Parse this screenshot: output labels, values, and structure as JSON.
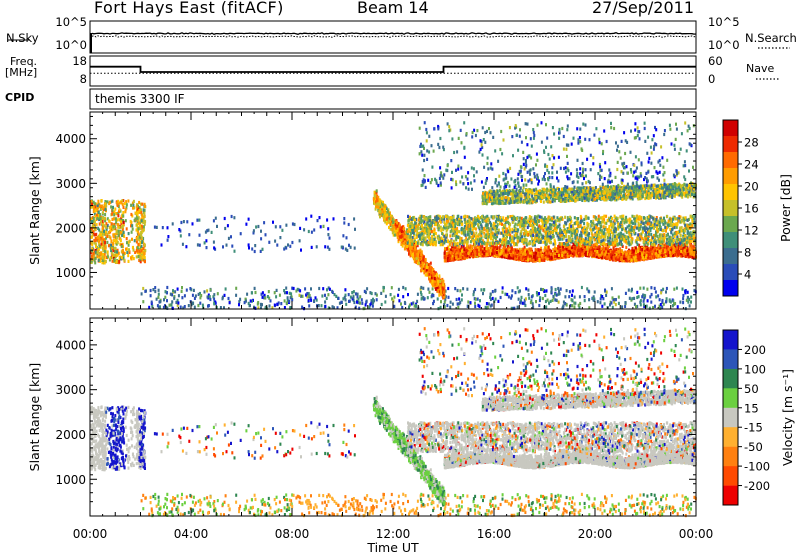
{
  "header": {
    "station": "Fort Hays East (fitACF)",
    "beam": "Beam 14",
    "date": "27/Sep/2011"
  },
  "side_labels": {
    "nsky": "N.Sky",
    "nsearch": "N.Search",
    "freq": "Freq.",
    "freq_unit": "[MHz]",
    "nave": "Nave",
    "cpid": "CPID"
  },
  "cpid_text": "themis 3300 IF",
  "chart_data": [
    {
      "type": "line",
      "panel": "noise",
      "left_ticks": [
        "10^5",
        "10^0"
      ],
      "right_ticks": [
        "10^5",
        "10^0"
      ],
      "series": [
        {
          "name": "N.Sky",
          "style": "solid"
        },
        {
          "name": "N.Search",
          "style": "dotted"
        }
      ]
    },
    {
      "type": "line",
      "panel": "frequency",
      "left_ticks": [
        "18",
        "8"
      ],
      "right_ticks": [
        "60",
        "0"
      ],
      "freq_ylim": [
        8,
        18
      ],
      "nave_ylim": [
        0,
        60
      ],
      "series": [
        {
          "name": "Freq.",
          "style": "solid",
          "x": [
            "00:00",
            "02:00",
            "02:00",
            "14:00",
            "14:00",
            "24:00"
          ],
          "values": [
            14.8,
            14.8,
            12.3,
            12.3,
            14.8,
            14.8
          ]
        },
        {
          "name": "Nave",
          "style": "dotted",
          "x": [
            "00:00",
            "24:00"
          ],
          "values": [
            22,
            22
          ]
        }
      ]
    },
    {
      "type": "heatmap",
      "panel": "power",
      "ylabel": "Slant Range [km]",
      "ylim": [
        180,
        4600
      ],
      "yticks": [
        1000,
        2000,
        3000,
        4000
      ],
      "colorbar": {
        "label": "Power [dB]",
        "ticks": [
          "28",
          "24",
          "20",
          "16",
          "12",
          "8",
          "4"
        ],
        "colors": [
          "#d00000",
          "#ee2a00",
          "#ff6a00",
          "#ff9c00",
          "#ffc400",
          "#c6c02a",
          "#6ba84f",
          "#3f8f79",
          "#3b6d8f",
          "#2a4cb8",
          "#0000ee"
        ]
      }
    },
    {
      "type": "heatmap",
      "panel": "velocity",
      "ylabel": "Slant Range [km]",
      "xlabel": "Time UT",
      "ylim": [
        180,
        4600
      ],
      "yticks": [
        1000,
        2000,
        3000,
        4000
      ],
      "xticks": [
        "00:00",
        "04:00",
        "08:00",
        "12:00",
        "16:00",
        "20:00",
        "00:00"
      ],
      "colorbar": {
        "label": "Velocity [m s⁻¹]",
        "ticks": [
          "200",
          "100",
          "50",
          "15",
          "-15",
          "-50",
          "-100",
          "-200"
        ],
        "colors": [
          "#1414cc",
          "#2c55b8",
          "#2e8650",
          "#6bd040",
          "#c8c8c0",
          "#ffb030",
          "#ff8010",
          "#ff4a00",
          "#ee0000"
        ]
      }
    }
  ]
}
